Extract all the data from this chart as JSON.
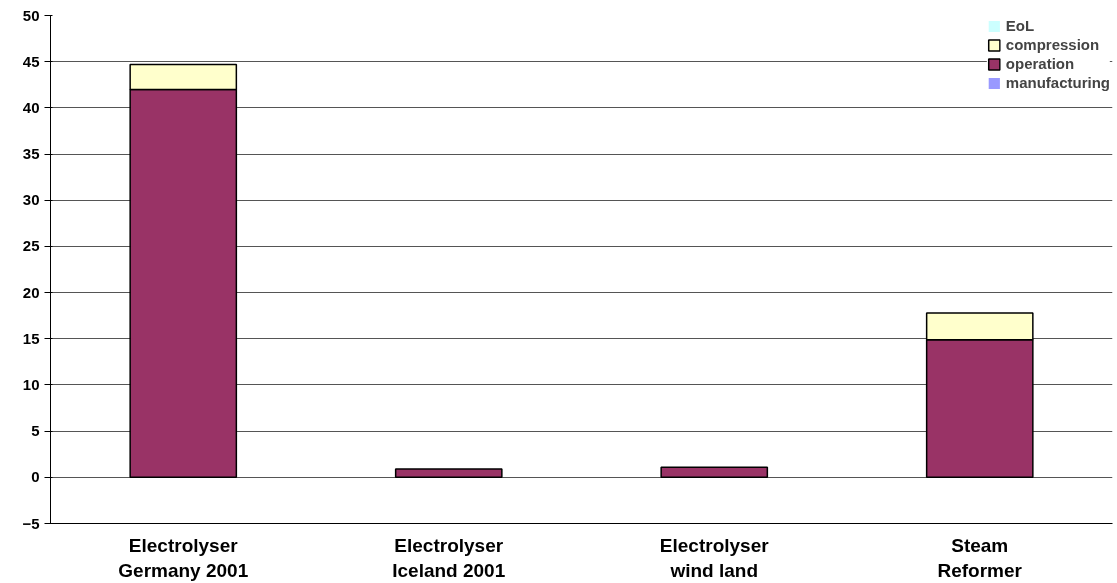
{
  "chart_data": {
    "type": "bar",
    "stacked": true,
    "categories": [
      "Electrolyser\nGermany 2001",
      "Electrolyser\nIceland 2001",
      "Electrolyser\nwind land",
      "Steam\nReformer"
    ],
    "series": [
      {
        "name": "manufacturing",
        "color": "#9999ff",
        "values": [
          null,
          null,
          null,
          null
        ]
      },
      {
        "name": "operation",
        "color": "#993366",
        "values": [
          42.0,
          0.9,
          1.1,
          14.9
        ]
      },
      {
        "name": "compression",
        "color": "#ffffcc",
        "values": [
          2.7,
          null,
          null,
          2.9
        ]
      },
      {
        "name": "EoL",
        "color": "#ccffff",
        "values": [
          null,
          null,
          null,
          null
        ]
      }
    ],
    "ylim": [
      -5,
      50
    ],
    "yticks": [
      -5,
      0,
      5,
      10,
      15,
      20,
      25,
      30,
      35,
      40,
      45,
      50
    ],
    "grid": "y",
    "legend": "top right"
  }
}
